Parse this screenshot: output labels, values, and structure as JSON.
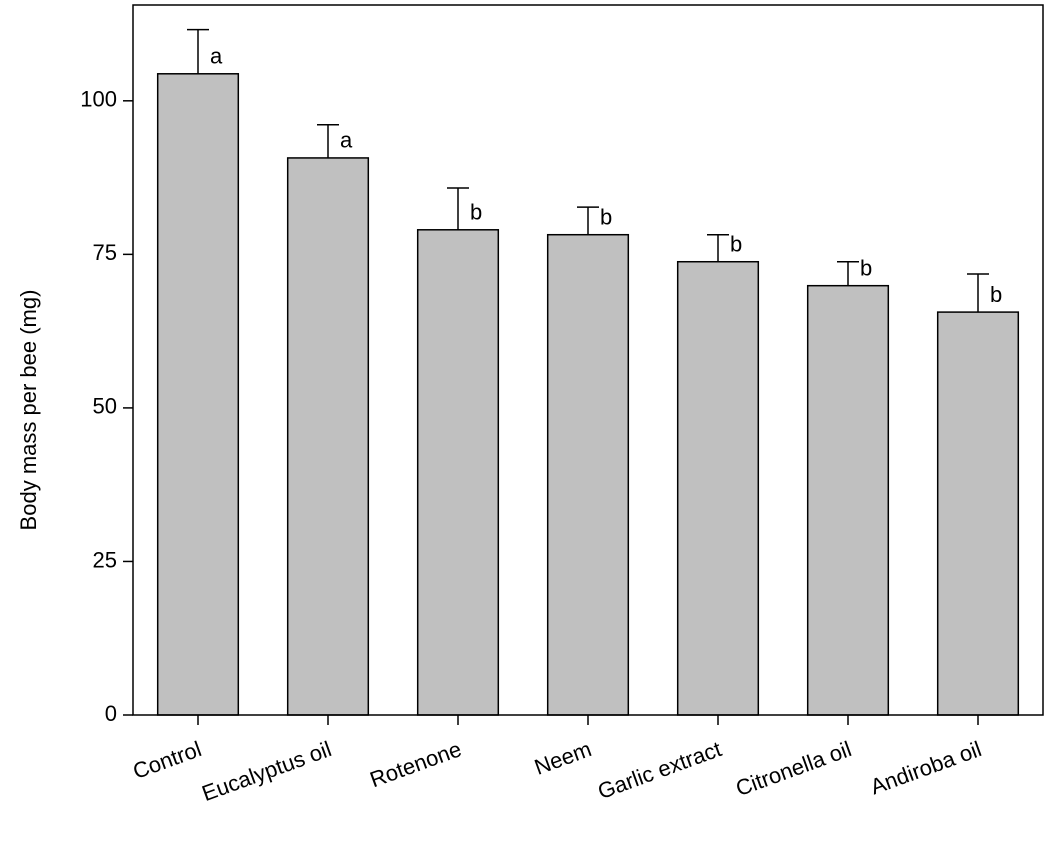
{
  "chart_data": {
    "type": "bar",
    "y_label": "Body mass per bee  (mg)",
    "categories": [
      "Control",
      "Eucalyptus oil",
      "Rotenone",
      "Neem",
      "Garlic extract",
      "Citronella oil",
      "Andiroba oil"
    ],
    "values": [
      104.4,
      90.7,
      79.0,
      78.2,
      73.8,
      69.9,
      65.6
    ],
    "errors": [
      7.2,
      5.4,
      6.8,
      4.5,
      4.4,
      3.9,
      6.2
    ],
    "group_letters": [
      "a",
      "a",
      "b",
      "b",
      "b",
      "b",
      "b"
    ],
    "color": "#c0c0c0",
    "ylim": [
      0,
      115.6
    ],
    "yticks": [
      0,
      25,
      50,
      75,
      100
    ],
    "grid": false
  }
}
